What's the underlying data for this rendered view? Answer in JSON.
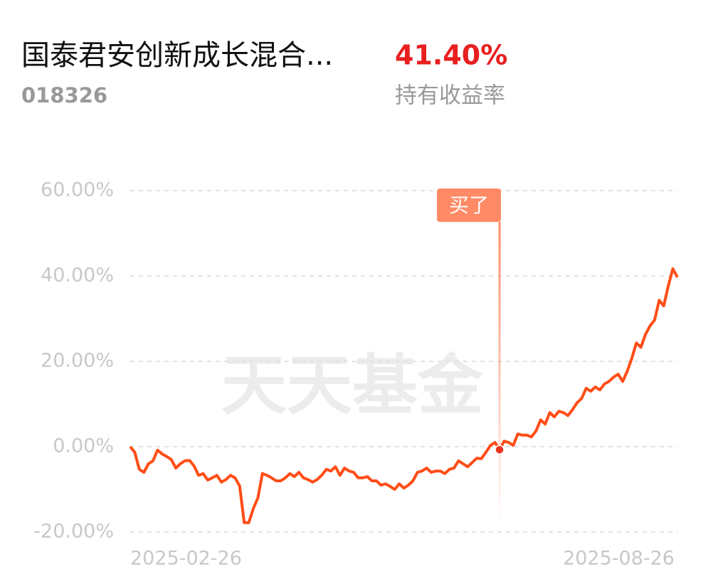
{
  "header": {
    "title": "国泰君安创新成长混合...",
    "code": "018326",
    "return": "41.40%",
    "return_label": "持有收益率"
  },
  "chart_data": {
    "type": "line",
    "watermark": "天天基金",
    "x_labels": [
      "2025-02-26",
      "2025-08-26"
    ],
    "ylim": [
      -20,
      60
    ],
    "yticks": [
      {
        "value": -20,
        "label": "-20.00%"
      },
      {
        "value": 0,
        "label": "0.00%"
      },
      {
        "value": 20,
        "label": "20.00%"
      },
      {
        "value": 40,
        "label": "40.00%"
      },
      {
        "value": 60,
        "label": "60.00%"
      }
    ],
    "grid": true,
    "annotation": {
      "text": "买了",
      "index": 81
    },
    "series": [
      {
        "name": "持有收益率",
        "color": "#ff4d17",
        "values": [
          0,
          -1.3,
          -5.3,
          -6,
          -4,
          -3.3,
          -0.8,
          -1.7,
          -2.3,
          -3,
          -5,
          -4,
          -3.3,
          -3.2,
          -4.5,
          -6.7,
          -6.3,
          -7.8,
          -7.3,
          -6.7,
          -8.3,
          -7.7,
          -6.7,
          -7.3,
          -9.2,
          -17.8,
          -17.8,
          -14.5,
          -12,
          -6.3,
          -6.7,
          -7.3,
          -8,
          -8,
          -7.3,
          -6.3,
          -7,
          -6,
          -7.3,
          -7.7,
          -8.3,
          -7.7,
          -6.7,
          -5.3,
          -5.7,
          -4.7,
          -6.7,
          -5,
          -5.7,
          -6,
          -7.3,
          -7.3,
          -7,
          -8,
          -8,
          -9,
          -8.7,
          -9.3,
          -10,
          -8.7,
          -9.7,
          -9,
          -8,
          -6,
          -5.7,
          -5,
          -6,
          -5.7,
          -5.7,
          -6.3,
          -5.3,
          -5,
          -3.3,
          -4,
          -4.7,
          -3.7,
          -2.7,
          -2.8,
          -1.3,
          0.3,
          1,
          -0.7,
          1.3,
          1,
          0.3,
          3,
          2.7,
          2.7,
          2.3,
          3.7,
          6.3,
          5.3,
          8,
          7,
          8.3,
          8,
          7.3,
          8.7,
          10.3,
          11.3,
          13.7,
          13,
          14,
          13.3,
          14.7,
          15.3,
          16.3,
          17,
          15.3,
          17.7,
          20.7,
          24.3,
          23.3,
          26.3,
          28.3,
          29.7,
          34.3,
          33,
          37.7,
          41.7,
          39.7
        ]
      }
    ]
  }
}
